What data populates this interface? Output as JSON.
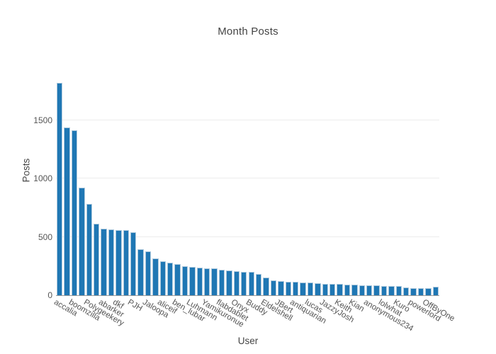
{
  "chart_data": {
    "type": "bar",
    "title": "Month Posts",
    "xlabel": "User",
    "ylabel": "Posts",
    "yticks": [
      0,
      500,
      1000,
      1500
    ],
    "ylim": [
      0,
      1930
    ],
    "grid": true,
    "legend": "none",
    "bar_color": "#1f77b4",
    "grid_color": "#ececec",
    "axis_line_color": "#999999",
    "title_color": "#444444",
    "tick_color": "#555555",
    "tick_labels": [
      "accalia",
      "boomzilla",
      "Polygeekery",
      "abarker",
      "dkf",
      "PJH",
      "Jaloopa",
      "aliceif",
      "ben_lubar",
      "Luhmann",
      "Yamikuronue",
      "flabdablet",
      "Onyx",
      "Buddy",
      "Eldelshell",
      "JBert",
      "antiquarian",
      "lucas",
      "JazzyJosh",
      "Keith",
      "Kian",
      "anonymous234",
      "lolwhat",
      "Kuro",
      "powerlord",
      "OffByOne"
    ],
    "tick_positions": [
      0,
      2,
      4,
      6,
      8,
      10,
      12,
      14,
      16,
      18,
      20,
      22,
      24,
      26,
      28,
      30,
      32,
      34,
      36,
      38,
      40,
      42,
      44,
      46,
      48,
      50
    ],
    "values": [
      1825,
      1440,
      1413,
      921,
      786,
      613,
      572,
      566,
      562,
      558,
      543,
      394,
      374,
      317,
      293,
      279,
      265,
      252,
      245,
      238,
      233,
      229,
      218,
      210,
      207,
      202,
      198,
      185,
      154,
      130,
      119,
      116,
      114,
      111,
      109,
      104,
      100,
      98,
      95,
      92,
      90,
      88,
      85,
      83,
      81,
      79,
      77,
      66,
      62,
      61,
      61,
      70
    ]
  }
}
